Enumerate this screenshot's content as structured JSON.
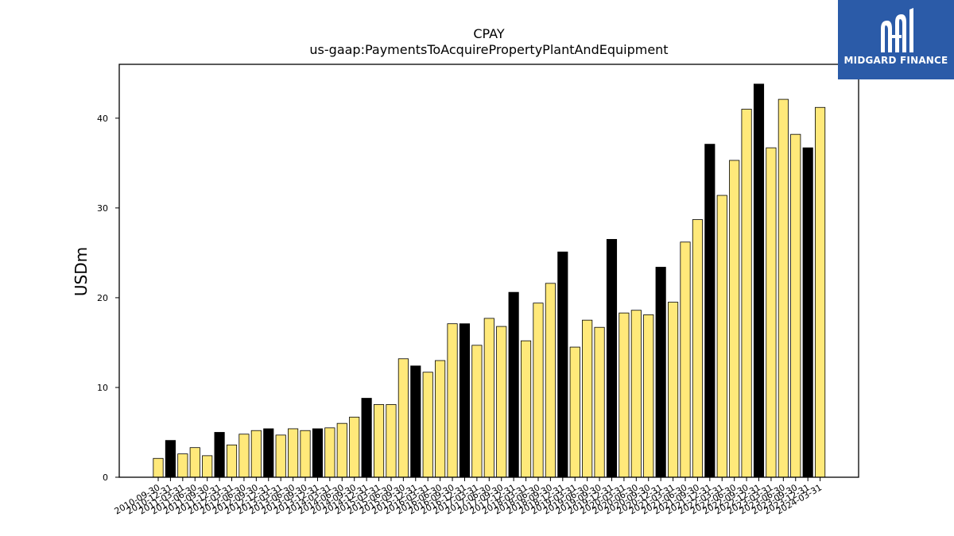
{
  "brand": {
    "name": "MIDGARD FINANCE",
    "bg_color": "#2b5ba8"
  },
  "colors": {
    "fy_bar": "#000000",
    "quarter_bar": "#ffe97a",
    "bar_edge": "#000000"
  },
  "chart_data": {
    "type": "bar",
    "title": "CPAY",
    "subtitle": "us-gaap:PaymentsToAcquirePropertyPlantAndEquipment",
    "xlabel": "",
    "ylabel": "USDm",
    "ylim": [
      0,
      46
    ],
    "yticks": [
      0,
      10,
      20,
      30,
      40
    ],
    "grid": false,
    "categories": [
      "2010-09-30",
      "2010-12-31",
      "2011-03-31",
      "2011-06-30",
      "2011-09-30",
      "2011-12-31",
      "2012-03-31",
      "2012-06-30",
      "2012-09-30",
      "2012-12-31",
      "2013-03-31",
      "2013-06-30",
      "2013-09-30",
      "2013-12-31",
      "2014-03-31",
      "2014-06-30",
      "2014-09-30",
      "2014-12-31",
      "2015-03-31",
      "2015-06-30",
      "2015-09-30",
      "2015-12-31",
      "2016-03-31",
      "2016-06-30",
      "2016-09-30",
      "2016-12-31",
      "2017-03-31",
      "2017-06-30",
      "2017-09-30",
      "2017-12-31",
      "2018-03-31",
      "2018-06-30",
      "2018-09-30",
      "2018-12-31",
      "2019-03-31",
      "2019-06-30",
      "2019-09-30",
      "2019-12-31",
      "2020-03-31",
      "2020-06-30",
      "2020-09-30",
      "2020-12-31",
      "2021-03-31",
      "2021-06-30",
      "2021-09-30",
      "2021-12-31",
      "2022-03-31",
      "2022-06-30",
      "2022-09-30",
      "2022-12-31",
      "2023-03-31",
      "2023-06-30",
      "2023-09-30",
      "2023-12-31",
      "2024-03-31"
    ],
    "values": [
      2.1,
      4.1,
      2.6,
      3.3,
      2.4,
      5.0,
      3.6,
      4.8,
      5.2,
      5.4,
      4.7,
      5.4,
      5.2,
      5.4,
      5.5,
      6.0,
      6.7,
      8.8,
      8.1,
      8.1,
      13.2,
      12.4,
      11.7,
      13.0,
      17.1,
      17.1,
      14.7,
      17.7,
      16.8,
      20.6,
      15.2,
      19.4,
      21.6,
      25.1,
      14.5,
      17.5,
      16.7,
      26.5,
      18.3,
      18.6,
      18.1,
      23.4,
      19.5,
      26.2,
      28.7,
      37.1,
      31.4,
      35.3,
      41.0,
      43.8,
      36.7,
      42.1,
      38.2,
      36.7,
      41.2
    ],
    "highlight": [
      false,
      true,
      false,
      false,
      false,
      true,
      false,
      false,
      false,
      true,
      false,
      false,
      false,
      true,
      false,
      false,
      false,
      true,
      false,
      false,
      false,
      true,
      false,
      false,
      false,
      true,
      false,
      false,
      false,
      true,
      false,
      false,
      false,
      true,
      false,
      false,
      false,
      true,
      false,
      false,
      false,
      true,
      false,
      false,
      false,
      true,
      false,
      false,
      false,
      true,
      false,
      false,
      false,
      true,
      false
    ]
  }
}
